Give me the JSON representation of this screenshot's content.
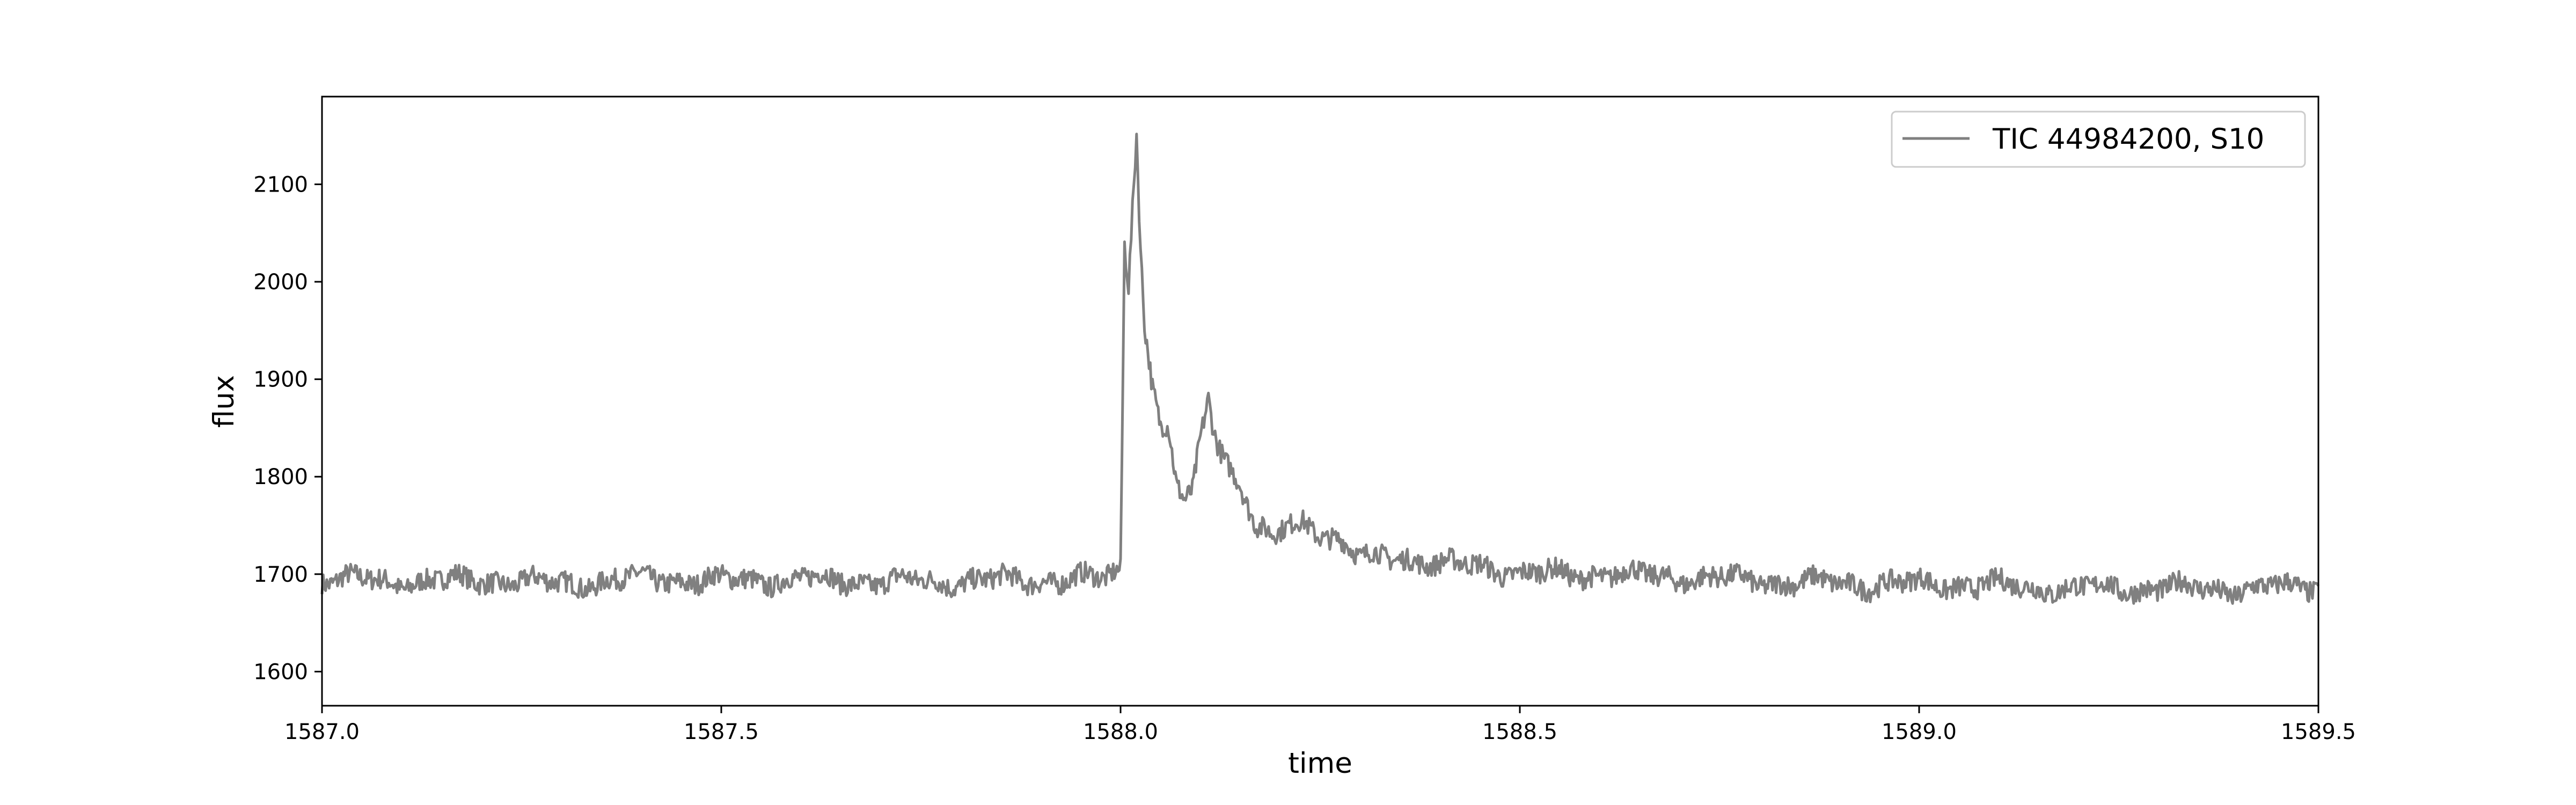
{
  "chart_data": {
    "type": "line",
    "title": "",
    "xlabel": "time",
    "ylabel": "flux",
    "xlim": [
      1587.0,
      1589.5
    ],
    "ylim": [
      1565,
      2190
    ],
    "x_ticks": [
      1587.0,
      1587.5,
      1588.0,
      1588.5,
      1589.0,
      1589.5
    ],
    "x_tick_labels": [
      "1587.0",
      "1587.5",
      "1588.0",
      "1588.5",
      "1589.0",
      "1589.5"
    ],
    "y_ticks": [
      1600,
      1700,
      1800,
      1900,
      2000,
      2100
    ],
    "y_tick_labels": [
      "1600",
      "1700",
      "1800",
      "1900",
      "2000",
      "2100"
    ],
    "grid": false,
    "legend_position": "top-right",
    "series": [
      {
        "name": "TIC 44984200, S10",
        "color": "#808080",
        "x": [
          1587.0,
          1587.1,
          1587.2,
          1587.3,
          1587.4,
          1587.5,
          1587.6,
          1587.7,
          1587.8,
          1587.9,
          1587.98,
          1588.0,
          1588.005,
          1588.01,
          1588.015,
          1588.02,
          1588.025,
          1588.03,
          1588.04,
          1588.05,
          1588.06,
          1588.07,
          1588.08,
          1588.09,
          1588.1,
          1588.11,
          1588.115,
          1588.12,
          1588.13,
          1588.15,
          1588.17,
          1588.19,
          1588.21,
          1588.23,
          1588.25,
          1588.28,
          1588.3,
          1588.35,
          1588.4,
          1588.45,
          1588.5,
          1588.6,
          1588.7,
          1588.8,
          1588.9,
          1589.0,
          1589.1,
          1589.2,
          1589.3,
          1589.4,
          1589.5
        ],
        "y": [
          1695,
          1692,
          1694,
          1690,
          1695,
          1693,
          1695,
          1692,
          1693,
          1694,
          1695,
          1705,
          2040,
          2000,
          2080,
          2160,
          2040,
          1960,
          1890,
          1850,
          1850,
          1790,
          1770,
          1780,
          1840,
          1885,
          1860,
          1840,
          1820,
          1795,
          1745,
          1735,
          1750,
          1755,
          1745,
          1730,
          1715,
          1720,
          1708,
          1710,
          1700,
          1700,
          1697,
          1693,
          1690,
          1690,
          1688,
          1685,
          1686,
          1684,
          1688
        ]
      }
    ]
  }
}
